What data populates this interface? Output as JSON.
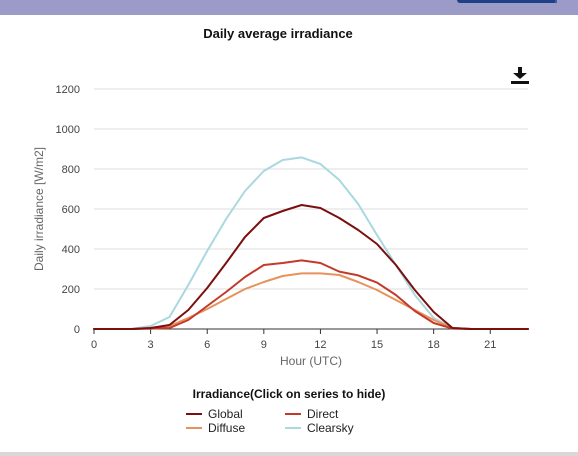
{
  "header": {
    "colors": {
      "bar": "#9c9bc7",
      "tab": "#1f3f86"
    }
  },
  "toolbar": {
    "download_icon": "download-icon"
  },
  "legend": {
    "title": "Irradiance(Click on series to hide)",
    "items": [
      {
        "label": "Global",
        "color": "#7b0f0f"
      },
      {
        "label": "Direct",
        "color": "#c23a2b"
      },
      {
        "label": "Diffuse",
        "color": "#e8925b"
      },
      {
        "label": "Clearsky",
        "color": "#a9d8e0"
      }
    ]
  },
  "chart_data": {
    "type": "line",
    "title": "Daily average irradiance",
    "xlabel": "Hour (UTC)",
    "ylabel": "Daily irradiance [W/m2]",
    "xlim": [
      0,
      23
    ],
    "ylim": [
      0,
      1200
    ],
    "xticks": [
      0,
      3,
      6,
      9,
      12,
      15,
      18,
      21
    ],
    "yticks": [
      0,
      200,
      400,
      600,
      800,
      1000,
      1200
    ],
    "grid": "horizontal",
    "legend_position": "bottom",
    "x": [
      0,
      1,
      2,
      3,
      4,
      5,
      6,
      7,
      8,
      9,
      10,
      11,
      12,
      13,
      14,
      15,
      16,
      17,
      18,
      19,
      20,
      21,
      22,
      23
    ],
    "series": [
      {
        "name": "Global",
        "color": "#7b0f0f",
        "values": [
          0,
          0,
          0,
          5,
          20,
          95,
          205,
          330,
          460,
          555,
          590,
          620,
          605,
          555,
          495,
          425,
          320,
          195,
          85,
          5,
          0,
          0,
          0,
          0
        ]
      },
      {
        "name": "Direct",
        "color": "#c23a2b",
        "values": [
          0,
          0,
          0,
          2,
          5,
          45,
          115,
          185,
          260,
          320,
          330,
          343,
          330,
          287,
          268,
          232,
          170,
          90,
          30,
          2,
          0,
          0,
          0,
          0
        ]
      },
      {
        "name": "Diffuse",
        "color": "#e8925b",
        "values": [
          0,
          0,
          0,
          5,
          15,
          55,
          100,
          150,
          200,
          235,
          265,
          278,
          278,
          270,
          235,
          195,
          145,
          95,
          45,
          5,
          0,
          0,
          0,
          0
        ]
      },
      {
        "name": "Clearsky",
        "color": "#a9d8e0",
        "values": [
          0,
          0,
          0,
          15,
          60,
          220,
          390,
          550,
          690,
          790,
          845,
          858,
          825,
          745,
          625,
          470,
          320,
          170,
          55,
          5,
          0,
          0,
          0,
          0
        ]
      }
    ]
  }
}
